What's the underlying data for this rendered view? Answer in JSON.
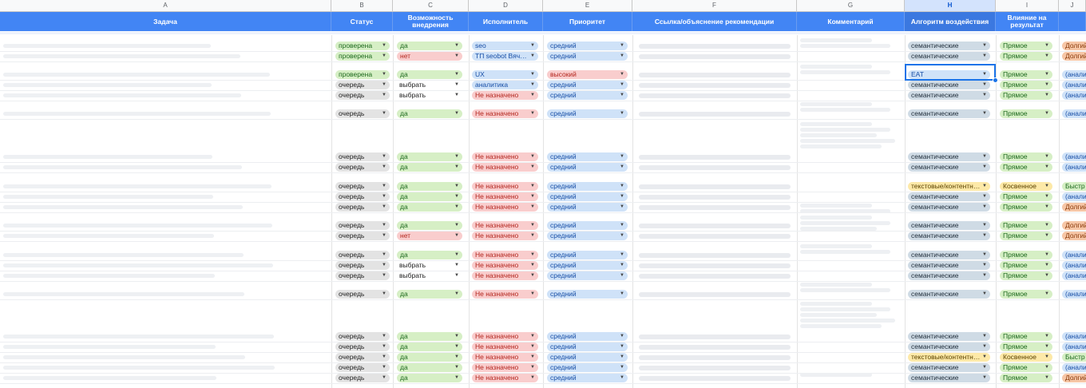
{
  "columns": [
    {
      "letter": "A",
      "title": "Задача"
    },
    {
      "letter": "B",
      "title": "Статус"
    },
    {
      "letter": "C",
      "title": "Возможность внедрения"
    },
    {
      "letter": "D",
      "title": "Исполнитель"
    },
    {
      "letter": "E",
      "title": "Приоритет"
    },
    {
      "letter": "F",
      "title": "Ссылка/объяснение рекомендации"
    },
    {
      "letter": "G",
      "title": "Комментарий"
    },
    {
      "letter": "H",
      "title": "Алгоритм воздействия"
    },
    {
      "letter": "I",
      "title": "Влияние на результат"
    },
    {
      "letter": "J",
      "title": ""
    }
  ],
  "selected_column": "H",
  "selected_cell_value": "EAT",
  "colors": {
    "header_blue": "#4285f4",
    "selection_blue": "#1a73e8"
  },
  "rows": [
    {
      "b": "проверена",
      "c": "да",
      "d": "seo",
      "e": "средний",
      "h": "семантические",
      "i": "Прямое",
      "j": "Долгий"
    },
    {
      "b": "проверена",
      "c": "нет",
      "d": "ТП seobot Вяч…",
      "e": "средний",
      "h": "семантические",
      "i": "Прямое",
      "j": "Долгий"
    },
    {
      "b": "проверена",
      "c": "да",
      "d": "UX",
      "e": "высокий",
      "h": "EAT",
      "i": "Прямое",
      "j": "(анали"
    },
    {
      "b": "очередь",
      "c": "выбрать",
      "d": "аналитика",
      "e": "средний",
      "h": "семантические",
      "i": "Прямое",
      "j": "(анали"
    },
    {
      "b": "очередь",
      "c": "выбрать",
      "d": "Не назначено",
      "e": "средний",
      "h": "семантические",
      "i": "Прямое",
      "j": "(анали"
    },
    {
      "b": "очередь",
      "c": "да",
      "d": "Не назначено",
      "e": "средний",
      "h": "семантические",
      "i": "Прямое",
      "j": "(анали"
    },
    {
      "b": "очередь",
      "c": "да",
      "d": "Не назначено",
      "e": "средний",
      "h": "семантические",
      "i": "Прямое",
      "j": "(анали"
    },
    {
      "b": "очередь",
      "c": "да",
      "d": "Не назначено",
      "e": "средний",
      "h": "семантические",
      "i": "Прямое",
      "j": "(анали"
    },
    {
      "b": "очередь",
      "c": "да",
      "d": "Не назначено",
      "e": "средний",
      "h": "текстовые/контентн…",
      "i": "Косвенное",
      "j": "Быстр"
    },
    {
      "b": "очередь",
      "c": "да",
      "d": "Не назначено",
      "e": "средний",
      "h": "семантические",
      "i": "Прямое",
      "j": "(анали"
    },
    {
      "b": "очередь",
      "c": "да",
      "d": "Не назначено",
      "e": "средний",
      "h": "семантические",
      "i": "Прямое",
      "j": "Долгий"
    },
    {
      "b": "очередь",
      "c": "да",
      "d": "Не назначено",
      "e": "средний",
      "h": "семантические",
      "i": "Прямое",
      "j": "Долгий"
    },
    {
      "b": "очередь",
      "c": "нет",
      "d": "Не назначено",
      "e": "средний",
      "h": "семантические",
      "i": "Прямое",
      "j": "Долгий"
    },
    {
      "b": "очередь",
      "c": "да",
      "d": "Не назначено",
      "e": "средний",
      "h": "семантические",
      "i": "Прямое",
      "j": "(анали"
    },
    {
      "b": "очередь",
      "c": "выбрать",
      "d": "Не назначено",
      "e": "средний",
      "h": "семантические",
      "i": "Прямое",
      "j": "(анали"
    },
    {
      "b": "очередь",
      "c": "выбрать",
      "d": "Не назначено",
      "e": "средний",
      "h": "семантические",
      "i": "Прямое",
      "j": "(анали"
    },
    {
      "b": "очередь",
      "c": "да",
      "d": "Не назначено",
      "e": "средний",
      "h": "семантические",
      "i": "Прямое",
      "j": "(анали"
    },
    {
      "b": "очередь",
      "c": "да",
      "d": "Не назначено",
      "e": "средний",
      "h": "семантические",
      "i": "Прямое",
      "j": "(анали"
    },
    {
      "b": "очередь",
      "c": "да",
      "d": "Не назначено",
      "e": "средний",
      "h": "семантические",
      "i": "Прямое",
      "j": "(анали"
    },
    {
      "b": "очередь",
      "c": "да",
      "d": "Не назначено",
      "e": "средний",
      "h": "текстовые/контентн…",
      "i": "Косвенное",
      "j": "Быстр"
    },
    {
      "b": "очередь",
      "c": "да",
      "d": "Не назначено",
      "e": "средний",
      "h": "семантические",
      "i": "Прямое",
      "j": "(анали"
    },
    {
      "b": "очередь",
      "c": "да",
      "d": "Не назначено",
      "e": "средний",
      "h": "семантические",
      "i": "Прямое",
      "j": "Долгий"
    }
  ]
}
